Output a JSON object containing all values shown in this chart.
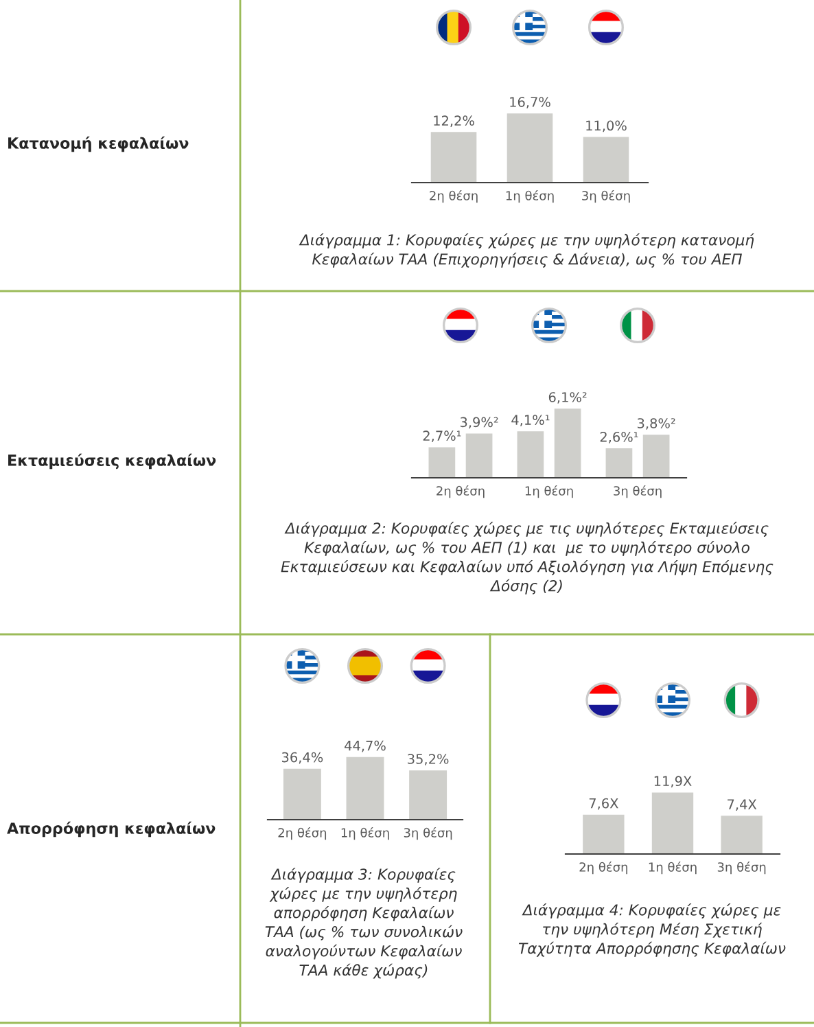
{
  "chart_data": [
    {
      "type": "bar",
      "title": "Διάγραμμα 1: Κορυφαίες χώρες με την υψηλότερη κατανομή\nΚεφαλαίων ΤΑΑ (Επιχορηγήσεις & Δάνεια), ως % του ΑΕΠ",
      "annotations": [
        "Κατανομή κεφαλαίων"
      ],
      "categories": [
        "2η θέση",
        "1η θέση",
        "3η θέση"
      ],
      "values": [
        12.2,
        16.7,
        11.0
      ],
      "value_labels": [
        "12,2%",
        "16,7%",
        "11,0%"
      ],
      "color": "#cfcfcb"
    },
    {
      "type": "bar",
      "title": "Διάγραμμα 2: Κορυφαίες χώρες με τις υψηλότερες Εκταμιεύσεις\nΚεφαλαίων, ως % του ΑΕΠ (1) και  με το υψηλότερο σύνολο\nΕκταμιεύσεων και Κεφαλαίων υπό Αξιολόγηση για Λήψη Επόμενης\nΔόσης (2)",
      "annotations": [
        "Εκταμιεύσεις κεφαλαίων"
      ],
      "categories": [
        "2η θέση",
        "1η θέση",
        "3η θέση"
      ],
      "series": [
        {
          "color": "#cfcfcb",
          "values": [
            2.7,
            4.1,
            2.6
          ],
          "value_labels": [
            "2,7%¹",
            "4,1%¹",
            "2,6%¹"
          ]
        },
        {
          "color": "#cfcfcb",
          "values": [
            3.9,
            6.1,
            3.8
          ],
          "value_labels": [
            "3,9%²",
            "6,1%²",
            "3,8%²"
          ]
        }
      ]
    },
    {
      "type": "bar",
      "title": "Διάγραμμα 3: Κορυφαίες\nχώρες με την υψηλότερη\nαπορρόφηση Κεφαλαίων\nΤΑΑ (ως % των συνολικών\nαναλογούντων Κεφαλαίων\nΤΑΑ κάθε χώρας)",
      "annotations": [
        "Απορρόφηση κεφαλαίων"
      ],
      "categories": [
        "2η θέση",
        "1η θέση",
        "3η θέση"
      ],
      "values": [
        36.4,
        44.7,
        35.2
      ],
      "value_labels": [
        "36,4%",
        "44,7%",
        "35,2%"
      ],
      "color": "#cfcfcb"
    },
    {
      "type": "bar",
      "title": "Διάγραμμα 4: Κορυφαίες χώρες με\nτην υψηλότερη Μέση Σχετική\nΤαχύτητα Απορρόφησης Κεφαλαίων",
      "categories": [
        "2η θέση",
        "1η θέση",
        "3η θέση"
      ],
      "values": [
        7.6,
        11.9,
        7.4
      ],
      "value_labels": [
        "7,6X",
        "11,9X",
        "7,4X"
      ],
      "color": "#cfcfcb"
    }
  ]
}
